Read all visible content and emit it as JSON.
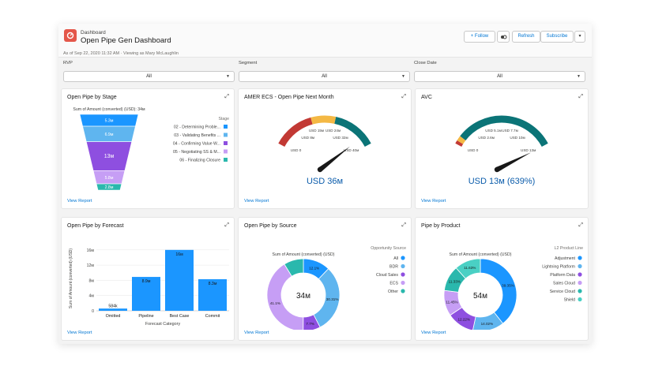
{
  "header": {
    "breadcrumb": "Dashboard",
    "title": "Open Pipe Gen Dashboard",
    "meta": "As of Sep 22, 2020 11:32 AM · Viewing as Mary McLaughlin",
    "follow_label": "+ Follow",
    "refresh_label": "Refresh",
    "subscribe_label": "Subscribe",
    "menu_caret": "▾"
  },
  "filters": [
    {
      "label": "RVP",
      "value": "All"
    },
    {
      "label": "Segment",
      "value": "All"
    },
    {
      "label": "Close Date",
      "value": "All"
    }
  ],
  "cards": {
    "stage": {
      "title": "Open Pipe by Stage",
      "view": "View Report"
    },
    "next_month": {
      "title": "AMER ECS - Open Pipe Next Month",
      "view": "View Report"
    },
    "avc": {
      "title": "AVC",
      "view": "View Report"
    },
    "forecast": {
      "title": "Open Pipe by Forecast",
      "view": "View Report"
    },
    "source": {
      "title": "Open Pipe by Source",
      "view": "View Report"
    },
    "product": {
      "title": "Pipe by Product",
      "view": "View Report"
    }
  },
  "chart_data": [
    {
      "type": "funnel",
      "subtitle": "Sum of Amount (converted) (USD): 34м",
      "legend_title": "Stage",
      "segments": [
        {
          "name": "02 - Determining Proble...",
          "label": "5.3м",
          "value": 5.3,
          "color": "#1b96ff"
        },
        {
          "name": "03 - Validating Benefits ...",
          "label": "6.9м",
          "value": 6.9,
          "color": "#5fb5ef"
        },
        {
          "name": "04 - Confirming Value W...",
          "label": "13м",
          "value": 13,
          "color": "#8e4fe0"
        },
        {
          "name": "05 - Negotiating SS & M...",
          "label": "5.8м",
          "value": 5.8,
          "color": "#c69ef5"
        },
        {
          "name": "06 - Finalizing Closure",
          "label": "2.8м",
          "value": 2.8,
          "color": "#2ab8ad"
        }
      ]
    },
    {
      "type": "gauge",
      "min": 0,
      "max": 40,
      "value": 36,
      "value_label": "USD 36м",
      "ticks": [
        "USD 0",
        "USD 8м",
        "USD 15м",
        "USD 24м",
        "USD 32м",
        "USD 40м"
      ],
      "bands": [
        {
          "from": 0,
          "to": 15,
          "color": "#c23934"
        },
        {
          "from": 15,
          "to": 24,
          "color": "#f4b844"
        },
        {
          "from": 24,
          "to": 40,
          "color": "#0b7477"
        }
      ]
    },
    {
      "type": "gauge",
      "min": 0,
      "max": 13,
      "value": 13,
      "value_label": "USD 13м (639%)",
      "ticks": [
        "USD 0",
        "USD 2.6м",
        "USD 5.1м",
        "USD 7.7м",
        "USD 10м",
        "USD 13м"
      ],
      "bands": [
        {
          "from": 0,
          "to": 0.4,
          "color": "#c23934"
        },
        {
          "from": 0.4,
          "to": 1.0,
          "color": "#f4b844"
        },
        {
          "from": 1.0,
          "to": 13,
          "color": "#0b7477"
        }
      ]
    },
    {
      "type": "bar",
      "categories": [
        "Omitted",
        "Pipeline",
        "Best Case",
        "Commit"
      ],
      "values": [
        0.584,
        8.9,
        16,
        8.3
      ],
      "labels": [
        "584k",
        "8.9м",
        "16м",
        "8.3м"
      ],
      "ylabel": "Sum of Amount (converted) (USD)",
      "xlabel": "Forecast Category",
      "yticks": [
        "0",
        "4м",
        "8м",
        "12м",
        "16м"
      ],
      "ylim": [
        0,
        17
      ],
      "color": "#1b96ff"
    },
    {
      "type": "pie",
      "subtitle": "Sum of Amount (converted) (USD)",
      "legend_title": "Opportunity Source",
      "center_label": "34м",
      "slices": [
        {
          "name": "All",
          "value": 12.1,
          "label": "12.1%",
          "color": "#1b96ff"
        },
        {
          "name": "BDR",
          "value": 30.3,
          "label": "30.31%",
          "color": "#5fb5ef"
        },
        {
          "name": "Cloud Sales",
          "value": 7.7,
          "label": "7.7%",
          "color": "#8e4fe0"
        },
        {
          "name": "ECS",
          "value": 41.1,
          "label": "41.1%",
          "color": "#c69ef5"
        },
        {
          "name": "Other",
          "value": 8.8,
          "label": "",
          "color": "#2ab8ad"
        }
      ]
    },
    {
      "type": "pie",
      "subtitle": "Sum of Amount (converted) (USD)",
      "legend_title": "L2 Product Line",
      "center_label": "54м",
      "slices": [
        {
          "name": "Adjustment",
          "value": 39.35,
          "label": "39.35%",
          "color": "#1b96ff"
        },
        {
          "name": "Lightning Platform",
          "value": 14.02,
          "label": "14.02%",
          "color": "#5fb5ef"
        },
        {
          "name": "Platform Data",
          "value": 12.22,
          "label": "12.22%",
          "color": "#8e4fe0"
        },
        {
          "name": "Sales Cloud",
          "value": 11.45,
          "label": "11.45%",
          "color": "#c69ef5"
        },
        {
          "name": "Service Cloud",
          "value": 11.33,
          "label": "11.33%",
          "color": "#2ab8ad"
        },
        {
          "name": "Shield",
          "value": 11.63,
          "label": "11.63%",
          "color": "#4ad0c4"
        }
      ]
    }
  ]
}
